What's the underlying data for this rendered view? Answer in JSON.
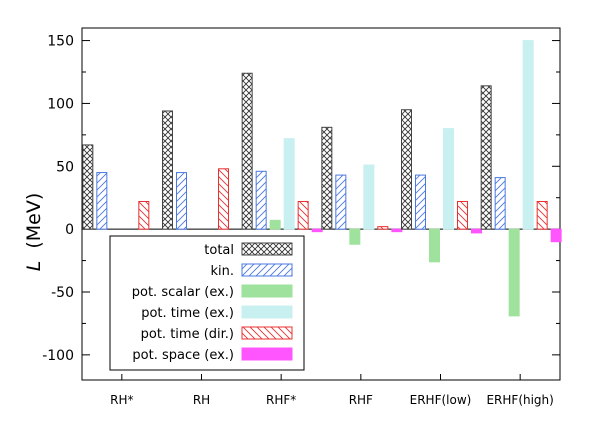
{
  "chart_data": {
    "type": "bar",
    "ylabel_symbol": "L",
    "ylabel_unit": "(MeV)",
    "ylim": [
      -120,
      160
    ],
    "yticks": [
      "150",
      "100",
      "50",
      "0",
      "-50",
      "-100"
    ],
    "ytick_values": [
      150,
      100,
      50,
      0,
      -50,
      -100
    ],
    "categories": [
      "RH*",
      "RH",
      "RHF*",
      "RHF",
      "ERHF(low)",
      "ERHF(high)"
    ],
    "legend_position": "bottom-left",
    "series": [
      {
        "name": "total",
        "values": [
          67,
          94,
          124,
          81,
          95,
          114
        ],
        "color": "#444444",
        "pattern": "crosshatch"
      },
      {
        "name": "kin.",
        "values": [
          45,
          45,
          46,
          43,
          43,
          41
        ],
        "color": "#4a78e0",
        "pattern": "diagonal"
      },
      {
        "name": "pot. scalar (ex.)",
        "values": [
          0,
          0,
          7,
          -12,
          -26,
          -69
        ],
        "color": "#9ee29e",
        "pattern": "solid"
      },
      {
        "name": "pot. time (ex.)",
        "values": [
          0,
          0,
          72,
          51,
          80,
          150
        ],
        "color": "#c8f0f0",
        "pattern": "solid"
      },
      {
        "name": "pot. time (dir.)",
        "values": [
          22,
          48,
          22,
          2,
          22,
          22
        ],
        "color": "#e83030",
        "pattern": "diagonal-back"
      },
      {
        "name": "pot. space (ex.)",
        "values": [
          0,
          0,
          -2,
          -2,
          -3,
          -10
        ],
        "color": "#ff55ff",
        "pattern": "solid"
      }
    ]
  }
}
